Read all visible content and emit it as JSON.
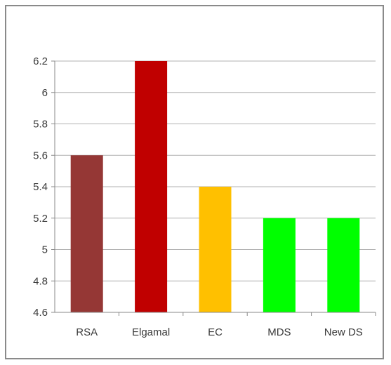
{
  "chart_data": {
    "type": "bar",
    "categories": [
      "RSA",
      "Elgamal",
      "EC",
      "MDS",
      "New DS"
    ],
    "values": [
      5.6,
      6.2,
      5.4,
      5.2,
      5.2
    ],
    "colors": [
      "#953735",
      "#c00000",
      "#ffc000",
      "#00ff00",
      "#00ff00"
    ],
    "yticks": [
      "4.6",
      "4.8",
      "5",
      "5.2",
      "5.4",
      "5.6",
      "5.8",
      "6",
      "6.2"
    ],
    "ylim": [
      4.6,
      6.2
    ],
    "grid": true,
    "legend": "none"
  }
}
